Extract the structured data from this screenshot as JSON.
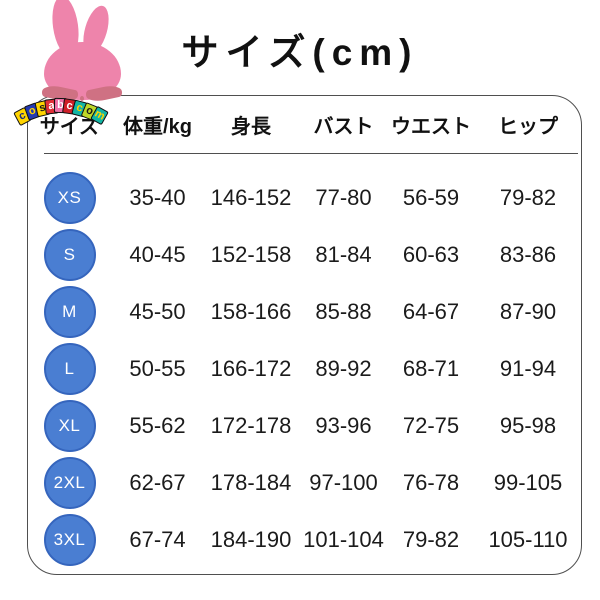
{
  "title": "サイズ(cm)",
  "logo": {
    "letters": [
      {
        "ch": "c",
        "bg": "#ffd400",
        "fg": "#1a2a80"
      },
      {
        "ch": "o",
        "bg": "#2439b0",
        "fg": "#ffd400"
      },
      {
        "ch": "s",
        "bg": "#ffd400",
        "fg": "#1a1a1a"
      },
      {
        "ch": "a",
        "bg": "#e03038",
        "fg": "#ffffff"
      },
      {
        "ch": "b",
        "bg": "#f071a8",
        "fg": "#ffffff"
      },
      {
        "ch": "c",
        "bg": "#cf1f28",
        "fg": "#ffffff"
      },
      {
        "ch": "c",
        "bg": "#12b5a5",
        "fg": "#ffd400"
      },
      {
        "ch": "o",
        "bg": "#bfd829",
        "fg": "#1a1a1a"
      },
      {
        "ch": "m",
        "bg": "#12b5a5",
        "fg": "#ffd400"
      }
    ]
  },
  "table": {
    "headers": [
      "サイズ",
      "体重/kg",
      "身長",
      "バスト",
      "ウエスト",
      "ヒップ"
    ],
    "rows": [
      {
        "size": "XS",
        "weight": "35-40",
        "height": "146-152",
        "bust": "77-80",
        "waist": "56-59",
        "hip": "79-82"
      },
      {
        "size": "S",
        "weight": "40-45",
        "height": "152-158",
        "bust": "81-84",
        "waist": "60-63",
        "hip": "83-86"
      },
      {
        "size": "M",
        "weight": "45-50",
        "height": "158-166",
        "bust": "85-88",
        "waist": "64-67",
        "hip": "87-90"
      },
      {
        "size": "L",
        "weight": "50-55",
        "height": "166-172",
        "bust": "89-92",
        "waist": "68-71",
        "hip": "91-94"
      },
      {
        "size": "XL",
        "weight": "55-62",
        "height": "172-178",
        "bust": "93-96",
        "waist": "72-75",
        "hip": "95-98"
      },
      {
        "size": "2XL",
        "weight": "62-67",
        "height": "178-184",
        "bust": "97-100",
        "waist": "76-78",
        "hip": "99-105"
      },
      {
        "size": "3XL",
        "weight": "67-74",
        "height": "184-190",
        "bust": "101-104",
        "waist": "79-82",
        "hip": "105-110"
      }
    ]
  },
  "colors": {
    "badge_fill": "#4a7ed2",
    "badge_border": "#3565bd",
    "bunny_pink": "#ee84ab",
    "bunny_dark_pink": "#cf7183",
    "table_border": "#4f4f4f",
    "text": "#1b1b1b"
  }
}
